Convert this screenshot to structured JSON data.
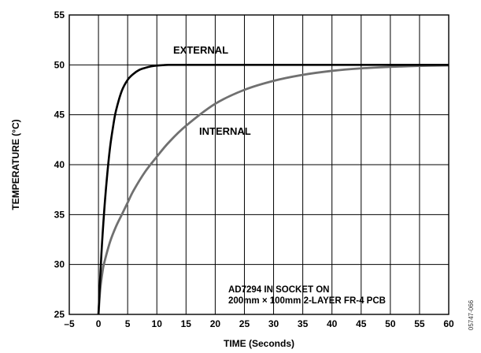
{
  "chart_data": {
    "type": "line",
    "title": "",
    "xlabel": "TIME (Seconds)",
    "ylabel": "TEMPERATURE (°C)",
    "xlim": [
      -5,
      60
    ],
    "ylim": [
      25,
      55
    ],
    "xticks": [
      -5,
      0,
      5,
      10,
      15,
      20,
      25,
      30,
      35,
      40,
      45,
      50,
      55,
      60
    ],
    "yticks": [
      25,
      30,
      35,
      40,
      45,
      50,
      55
    ],
    "xtick_labels": [
      "–5",
      "0",
      "5",
      "10",
      "15",
      "20",
      "25",
      "30",
      "35",
      "40",
      "45",
      "50",
      "55",
      "60"
    ],
    "ytick_labels": [
      "25",
      "30",
      "35",
      "40",
      "45",
      "50",
      "55"
    ],
    "grid": true,
    "series": [
      {
        "name": "EXTERNAL",
        "color": "#000000",
        "x": [
          0,
          0.5,
          1,
          1.5,
          2,
          2.5,
          3,
          4,
          5,
          6,
          7,
          8,
          9,
          10,
          11,
          12,
          15,
          20,
          30,
          40,
          50,
          60
        ],
        "y": [
          25,
          31,
          35.5,
          39,
          41.8,
          43.8,
          45.4,
          47.4,
          48.5,
          49.1,
          49.5,
          49.7,
          49.85,
          49.93,
          49.97,
          50,
          50,
          50,
          50,
          50,
          50,
          50
        ]
      },
      {
        "name": "INTERNAL",
        "color": "#707070",
        "x": [
          0,
          0.3,
          0.7,
          1,
          2,
          3,
          4,
          5,
          6,
          8,
          10,
          12,
          15,
          20,
          25,
          30,
          35,
          40,
          45,
          50,
          55,
          60
        ],
        "y": [
          25,
          27.5,
          29.3,
          30.2,
          32.3,
          33.8,
          35,
          36.2,
          37.4,
          39.3,
          40.8,
          42.2,
          43.9,
          46.1,
          47.5,
          48.4,
          49,
          49.4,
          49.65,
          49.8,
          49.9,
          49.95
        ]
      }
    ],
    "annotations": {
      "note_line1": "AD7294 IN SOCKET ON",
      "note_line2": "200mm × 100mm 2-LAYER FR-4 PCB",
      "figure_number": "05747-066"
    }
  }
}
